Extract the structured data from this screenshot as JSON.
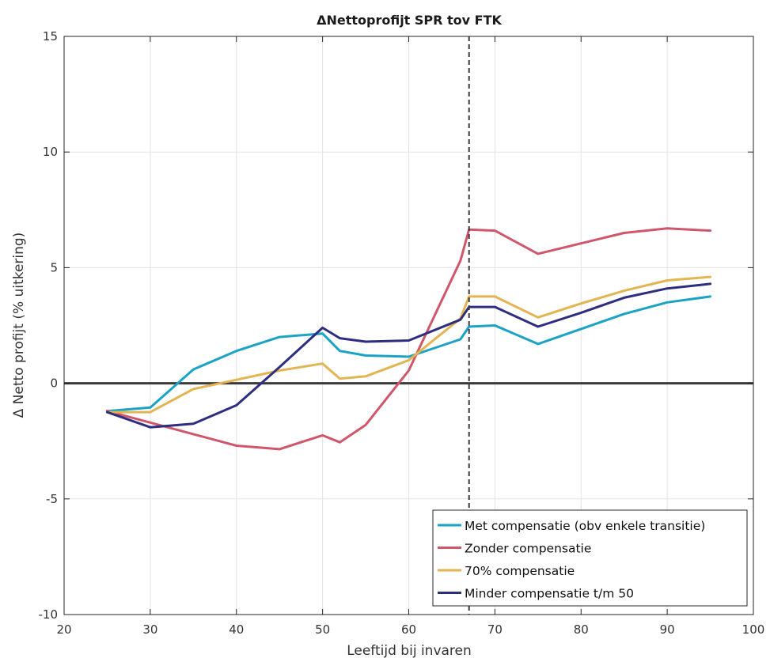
{
  "chart_data": {
    "type": "line",
    "title": "ΔNettoprofijt SPR tov FTK",
    "xlabel": "Leeftijd bij invaren",
    "ylabel": "Δ Netto profijt (% uitkering)",
    "xlim": [
      20,
      100
    ],
    "ylim": [
      -10,
      15
    ],
    "xticks": [
      "20",
      "30",
      "40",
      "50",
      "60",
      "70",
      "80",
      "90",
      "100"
    ],
    "yticks": [
      "-10",
      "-5",
      "0",
      "5",
      "10",
      "15"
    ],
    "grid": true,
    "legend_position": "bottom-right",
    "zero_line": 0,
    "vertical_dashed_line_x": 67,
    "series": [
      {
        "name": "Met compensatie (obv enkele transitie)",
        "color": "#1ba3c6",
        "points": [
          [
            25,
            -1.2
          ],
          [
            30,
            -1.05
          ],
          [
            35,
            0.6
          ],
          [
            40,
            1.4
          ],
          [
            45,
            2.0
          ],
          [
            50,
            2.15
          ],
          [
            52,
            1.4
          ],
          [
            55,
            1.2
          ],
          [
            60,
            1.15
          ],
          [
            66,
            1.9
          ],
          [
            67,
            2.45
          ],
          [
            70,
            2.5
          ],
          [
            75,
            1.7
          ],
          [
            80,
            2.35
          ],
          [
            85,
            3.0
          ],
          [
            90,
            3.5
          ],
          [
            95,
            3.75
          ]
        ]
      },
      {
        "name": "Zonder compensatie",
        "color": "#d0566b",
        "points": [
          [
            25,
            -1.2
          ],
          [
            30,
            -1.7
          ],
          [
            35,
            -2.2
          ],
          [
            40,
            -2.7
          ],
          [
            45,
            -2.85
          ],
          [
            50,
            -2.25
          ],
          [
            52,
            -2.55
          ],
          [
            55,
            -1.8
          ],
          [
            60,
            0.55
          ],
          [
            66,
            5.3
          ],
          [
            67,
            6.65
          ],
          [
            70,
            6.6
          ],
          [
            75,
            5.6
          ],
          [
            80,
            6.05
          ],
          [
            85,
            6.5
          ],
          [
            90,
            6.7
          ],
          [
            95,
            6.6
          ]
        ]
      },
      {
        "name": "70% compensatie",
        "color": "#e2b552",
        "points": [
          [
            25,
            -1.25
          ],
          [
            30,
            -1.25
          ],
          [
            35,
            -0.25
          ],
          [
            40,
            0.15
          ],
          [
            45,
            0.55
          ],
          [
            50,
            0.85
          ],
          [
            52,
            0.2
          ],
          [
            55,
            0.3
          ],
          [
            60,
            1.0
          ],
          [
            66,
            2.8
          ],
          [
            67,
            3.75
          ],
          [
            70,
            3.75
          ],
          [
            75,
            2.85
          ],
          [
            80,
            3.45
          ],
          [
            85,
            4.0
          ],
          [
            90,
            4.45
          ],
          [
            95,
            4.6
          ]
        ]
      },
      {
        "name": "Minder compensatie t/m 50",
        "color": "#2e2e80",
        "points": [
          [
            25,
            -1.25
          ],
          [
            30,
            -1.9
          ],
          [
            35,
            -1.75
          ],
          [
            40,
            -0.95
          ],
          [
            45,
            0.7
          ],
          [
            50,
            2.4
          ],
          [
            52,
            1.95
          ],
          [
            55,
            1.8
          ],
          [
            60,
            1.85
          ],
          [
            66,
            2.75
          ],
          [
            67,
            3.3
          ],
          [
            70,
            3.3
          ],
          [
            75,
            2.45
          ],
          [
            80,
            3.05
          ],
          [
            85,
            3.7
          ],
          [
            90,
            4.1
          ],
          [
            95,
            4.3
          ]
        ]
      }
    ]
  }
}
